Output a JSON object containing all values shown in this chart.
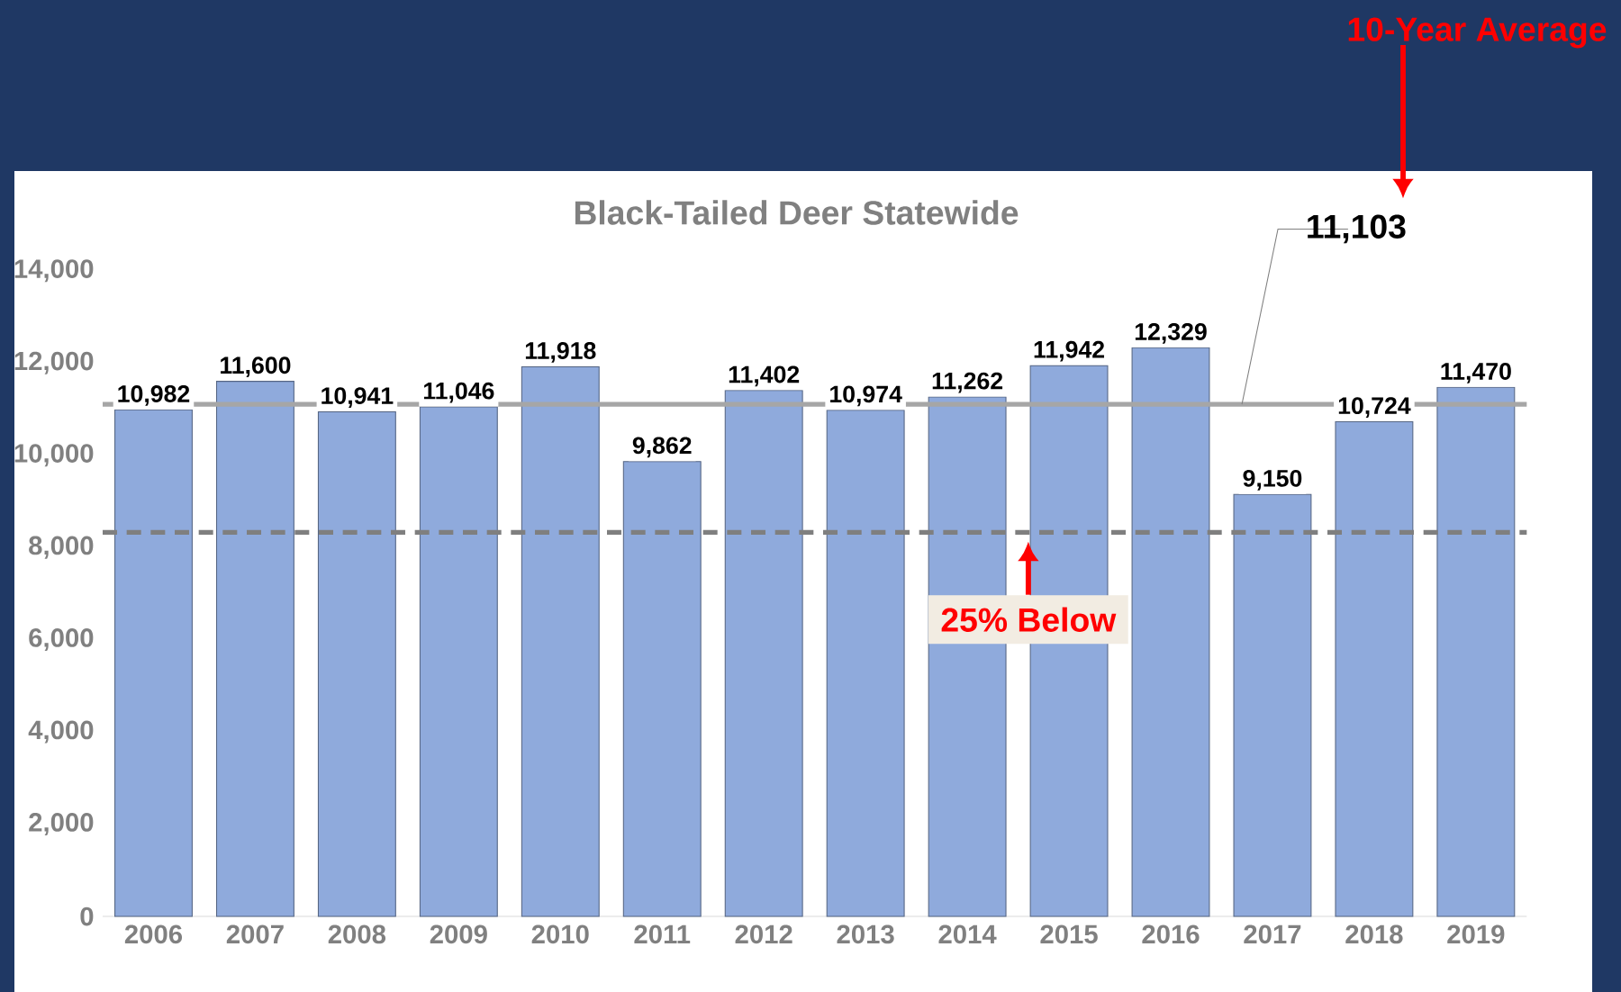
{
  "chart_data": {
    "type": "bar",
    "title": "Black-Tailed Deer Statewide",
    "categories": [
      "2006",
      "2007",
      "2008",
      "2009",
      "2010",
      "2011",
      "2012",
      "2013",
      "2014",
      "2015",
      "2016",
      "2017",
      "2018",
      "2019"
    ],
    "values": [
      10982,
      11600,
      10941,
      11046,
      11918,
      9862,
      11402,
      10974,
      11262,
      11942,
      12329,
      9150,
      10724,
      11470
    ],
    "value_labels": [
      "10,982",
      "11,600",
      "10,941",
      "11,046",
      "11,918",
      "9,862",
      "11,402",
      "10,974",
      "11,262",
      "11,942",
      "12,329",
      "9,150",
      "10,724",
      "11,470"
    ],
    "color": "#8faadc",
    "ylim": [
      0,
      14000
    ],
    "yticks": [
      {
        "value": 0,
        "label": "0"
      },
      {
        "value": 2000,
        "label": "2,000"
      },
      {
        "value": 4000,
        "label": "4,000"
      },
      {
        "value": 6000,
        "label": "6,000"
      },
      {
        "value": 8000,
        "label": "8,000"
      },
      {
        "value": 10000,
        "label": "10,000"
      },
      {
        "value": 12000,
        "label": "12,000"
      },
      {
        "value": 14000,
        "label": "14,000"
      }
    ],
    "ref_lines": [
      {
        "axis": "y",
        "value": 11103,
        "label": "11,103",
        "color": "#a6a6a6",
        "line_style": "solid"
      },
      {
        "axis": "y",
        "value": 8327,
        "label": "25% Below",
        "color": "#7f7f7f",
        "line_style": "dashed"
      }
    ],
    "annotations": [
      "10-Year Average"
    ]
  }
}
